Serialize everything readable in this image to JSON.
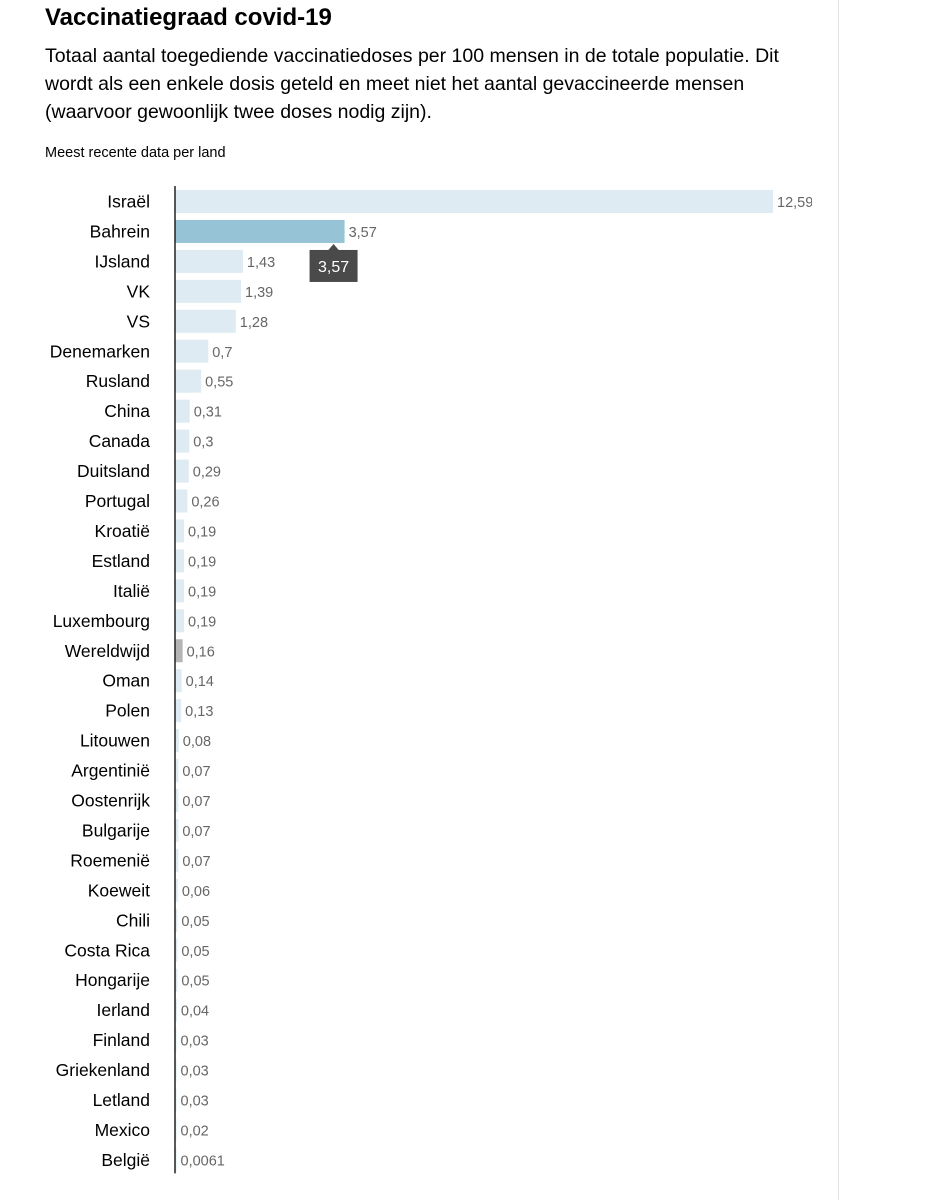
{
  "header": {
    "title": "Vaccinatiegraad covid-19",
    "subtitle": "Totaal aantal toegediende vaccinatiedoses per 100 mensen in de totale populatie. Dit wordt als een enkele dosis geteld en meet niet het aantal gevaccineerde mensen (waarvoor gewoonlijk twee doses nodig zijn).",
    "note": "Meest recente data per land"
  },
  "colors": {
    "bar": "#deebf2",
    "bar_highlight": "#96c4d6",
    "bar_world": "#b5b5b5",
    "axis": "#222222",
    "tooltip_bg": "#4a4a4a",
    "tooltip_text": "#ffffff"
  },
  "tooltip": {
    "category": "Bahrein",
    "text": "3,57"
  },
  "chart_data": {
    "type": "bar",
    "orientation": "horizontal",
    "title": "Vaccinatiegraad covid-19",
    "xlabel": "",
    "ylabel": "",
    "categories": [
      "Israël",
      "Bahrein",
      "IJsland",
      "VK",
      "VS",
      "Denemarken",
      "Rusland",
      "China",
      "Canada",
      "Duitsland",
      "Portugal",
      "Kroatië",
      "Estland",
      "Italië",
      "Luxembourg",
      "Wereldwijd",
      "Oman",
      "Polen",
      "Litouwen",
      "Argentinië",
      "Oostenrijk",
      "Bulgarije",
      "Roemenië",
      "Koeweit",
      "Chili",
      "Costa Rica",
      "Hongarije",
      "Ierland",
      "Finland",
      "Griekenland",
      "Letland",
      "Mexico",
      "België"
    ],
    "values": [
      12.59,
      3.57,
      1.43,
      1.39,
      1.28,
      0.7,
      0.55,
      0.31,
      0.3,
      0.29,
      0.26,
      0.19,
      0.19,
      0.19,
      0.19,
      0.16,
      0.14,
      0.13,
      0.08,
      0.07,
      0.07,
      0.07,
      0.07,
      0.06,
      0.05,
      0.05,
      0.05,
      0.04,
      0.03,
      0.03,
      0.03,
      0.02,
      0.0061
    ],
    "labels": [
      "12,59",
      "3,57",
      "1,43",
      "1,39",
      "1,28",
      "0,7",
      "0,55",
      "0,31",
      "0,3",
      "0,29",
      "0,26",
      "0,19",
      "0,19",
      "0,19",
      "0,19",
      "0,16",
      "0,14",
      "0,13",
      "0,08",
      "0,07",
      "0,07",
      "0,07",
      "0,07",
      "0,06",
      "0,05",
      "0,05",
      "0,05",
      "0,04",
      "0,03",
      "0,03",
      "0,03",
      "0,02",
      "0,0061"
    ],
    "highlight": "Bahrein",
    "special": "Wereldwijd",
    "xlim": [
      0,
      12.59
    ],
    "grid": false
  }
}
